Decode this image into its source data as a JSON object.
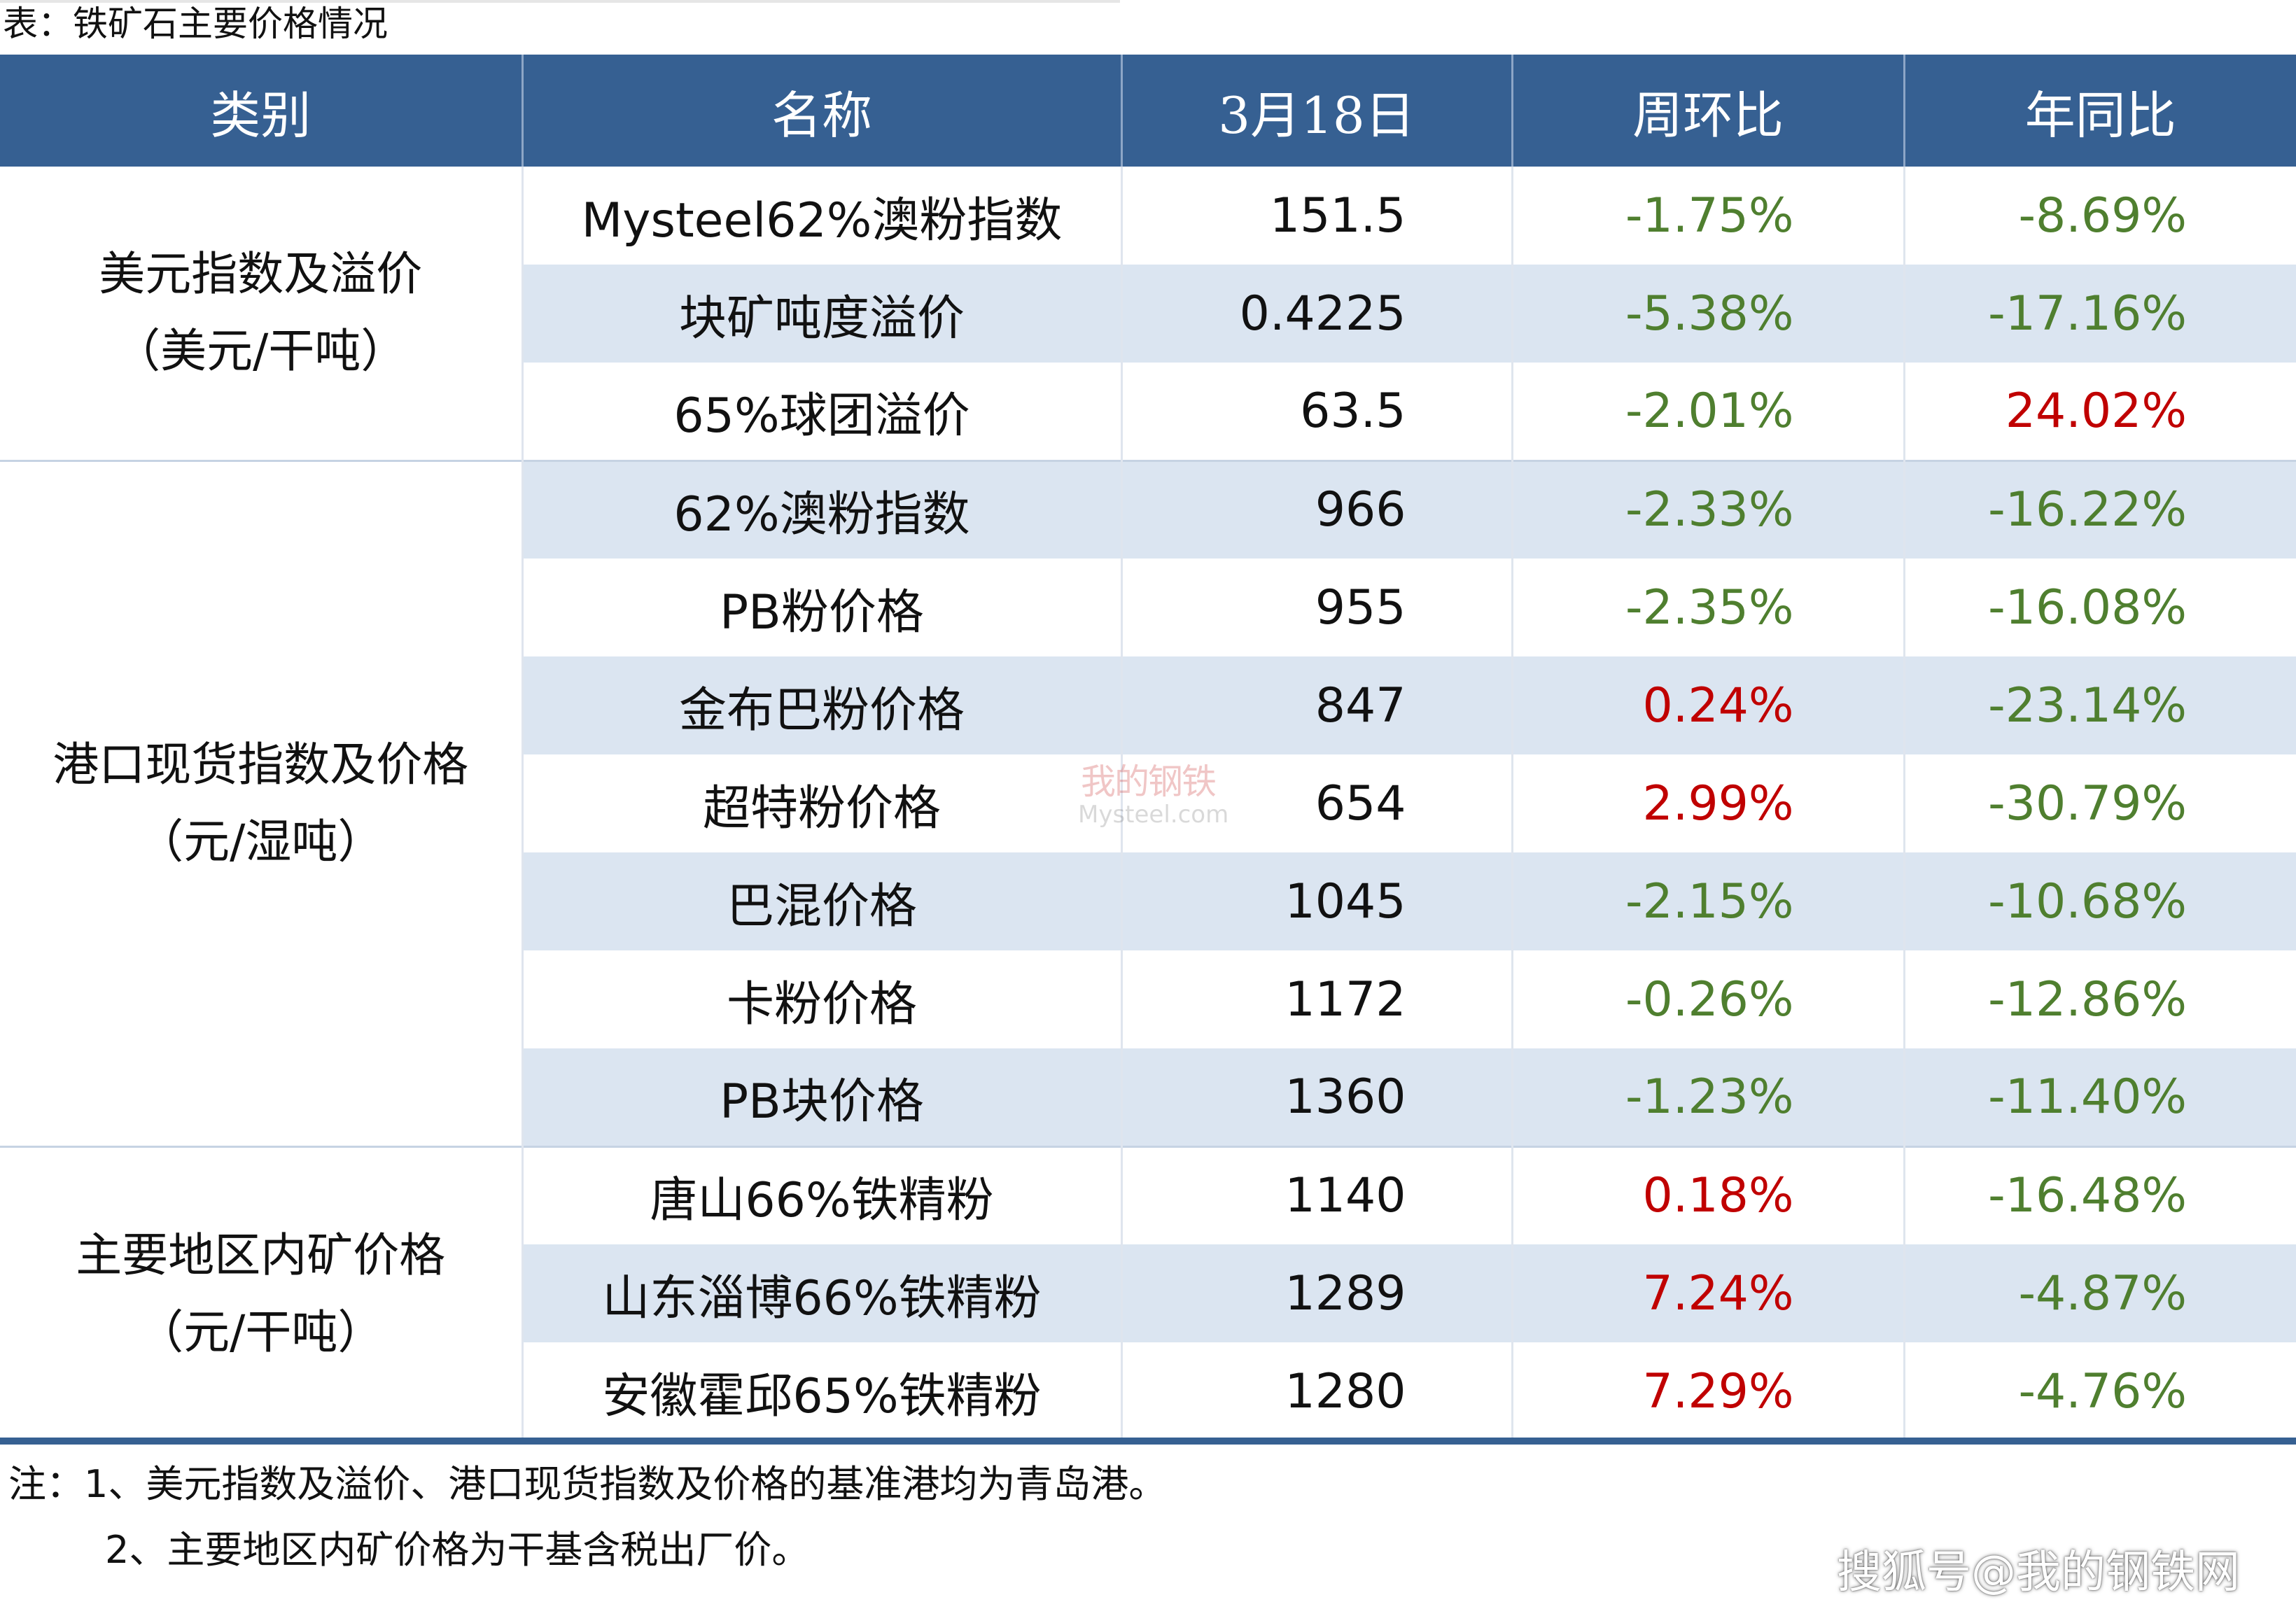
{
  "title": "表：铁矿石主要价格情况",
  "header": [
    "类别",
    "名称",
    "3月18日",
    "周环比",
    "年同比"
  ],
  "colors": {
    "header_bg": "#366092",
    "stripe": "#dbe5f1",
    "negative": "#4f7f2f",
    "positive": "#c00000"
  },
  "groups": [
    {
      "category_line1": "美元指数及溢价",
      "category_line2": "（美元/干吨）",
      "rows": [
        {
          "name": "Mysteel62%澳粉指数",
          "value": "151.5",
          "wow": "-1.75%",
          "yoy": "-8.69%"
        },
        {
          "name": "块矿吨度溢价",
          "value": "0.4225",
          "wow": "-5.38%",
          "yoy": "-17.16%"
        },
        {
          "name": "65%球团溢价",
          "value": "63.5",
          "wow": "-2.01%",
          "yoy": "24.02%"
        }
      ]
    },
    {
      "category_line1": "港口现货指数及价格",
      "category_line2": "（元/湿吨）",
      "rows": [
        {
          "name": "62%澳粉指数",
          "value": "966",
          "wow": "-2.33%",
          "yoy": "-16.22%"
        },
        {
          "name": "PB粉价格",
          "value": "955",
          "wow": "-2.35%",
          "yoy": "-16.08%"
        },
        {
          "name": "金布巴粉价格",
          "value": "847",
          "wow": "0.24%",
          "yoy": "-23.14%"
        },
        {
          "name": "超特粉价格",
          "value": "654",
          "wow": "2.99%",
          "yoy": "-30.79%"
        },
        {
          "name": "巴混价格",
          "value": "1045",
          "wow": "-2.15%",
          "yoy": "-10.68%"
        },
        {
          "name": "卡粉价格",
          "value": "1172",
          "wow": "-0.26%",
          "yoy": "-12.86%"
        },
        {
          "name": "PB块价格",
          "value": "1360",
          "wow": "-1.23%",
          "yoy": "-11.40%"
        }
      ]
    },
    {
      "category_line1": "主要地区内矿价格",
      "category_line2": "（元/干吨）",
      "rows": [
        {
          "name": "唐山66%铁精粉",
          "value": "1140",
          "wow": "0.18%",
          "yoy": "-16.48%"
        },
        {
          "name": "山东淄博66%铁精粉",
          "value": "1289",
          "wow": "7.24%",
          "yoy": "-4.87%"
        },
        {
          "name": "安徽霍邱65%铁精粉",
          "value": "1280",
          "wow": "7.29%",
          "yoy": "-4.76%"
        }
      ]
    }
  ],
  "notes": {
    "line1": "注：1、美元指数及溢价、港口现货指数及价格的基准港均为青岛港。",
    "line2": "2、主要地区内矿价格为干基含税出厂价。"
  },
  "watermark": {
    "cn": "我的钢铁",
    "en": "Mysteel.com"
  },
  "source": "搜狐号@我的钢铁网"
}
